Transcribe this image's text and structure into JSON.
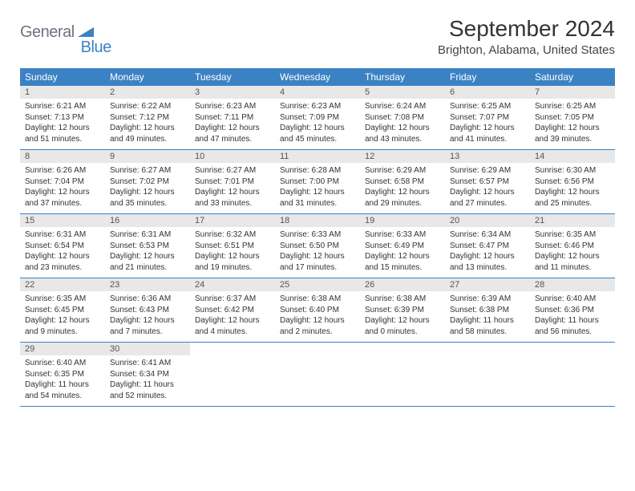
{
  "logo": {
    "part1": "General",
    "part2": "Blue"
  },
  "title": "September 2024",
  "location": "Brighton, Alabama, United States",
  "weekdays": [
    "Sunday",
    "Monday",
    "Tuesday",
    "Wednesday",
    "Thursday",
    "Friday",
    "Saturday"
  ],
  "colors": {
    "header_bg": "#3b82c4",
    "header_fg": "#ffffff",
    "daynum_bg": "#e8e8e8",
    "row_border": "#3b82c4",
    "logo_gray": "#6b7280",
    "logo_blue": "#3b82c4"
  },
  "days": [
    {
      "n": "1",
      "sunrise": "6:21 AM",
      "sunset": "7:13 PM",
      "daylight": "12 hours and 51 minutes."
    },
    {
      "n": "2",
      "sunrise": "6:22 AM",
      "sunset": "7:12 PM",
      "daylight": "12 hours and 49 minutes."
    },
    {
      "n": "3",
      "sunrise": "6:23 AM",
      "sunset": "7:11 PM",
      "daylight": "12 hours and 47 minutes."
    },
    {
      "n": "4",
      "sunrise": "6:23 AM",
      "sunset": "7:09 PM",
      "daylight": "12 hours and 45 minutes."
    },
    {
      "n": "5",
      "sunrise": "6:24 AM",
      "sunset": "7:08 PM",
      "daylight": "12 hours and 43 minutes."
    },
    {
      "n": "6",
      "sunrise": "6:25 AM",
      "sunset": "7:07 PM",
      "daylight": "12 hours and 41 minutes."
    },
    {
      "n": "7",
      "sunrise": "6:25 AM",
      "sunset": "7:05 PM",
      "daylight": "12 hours and 39 minutes."
    },
    {
      "n": "8",
      "sunrise": "6:26 AM",
      "sunset": "7:04 PM",
      "daylight": "12 hours and 37 minutes."
    },
    {
      "n": "9",
      "sunrise": "6:27 AM",
      "sunset": "7:02 PM",
      "daylight": "12 hours and 35 minutes."
    },
    {
      "n": "10",
      "sunrise": "6:27 AM",
      "sunset": "7:01 PM",
      "daylight": "12 hours and 33 minutes."
    },
    {
      "n": "11",
      "sunrise": "6:28 AM",
      "sunset": "7:00 PM",
      "daylight": "12 hours and 31 minutes."
    },
    {
      "n": "12",
      "sunrise": "6:29 AM",
      "sunset": "6:58 PM",
      "daylight": "12 hours and 29 minutes."
    },
    {
      "n": "13",
      "sunrise": "6:29 AM",
      "sunset": "6:57 PM",
      "daylight": "12 hours and 27 minutes."
    },
    {
      "n": "14",
      "sunrise": "6:30 AM",
      "sunset": "6:56 PM",
      "daylight": "12 hours and 25 minutes."
    },
    {
      "n": "15",
      "sunrise": "6:31 AM",
      "sunset": "6:54 PM",
      "daylight": "12 hours and 23 minutes."
    },
    {
      "n": "16",
      "sunrise": "6:31 AM",
      "sunset": "6:53 PM",
      "daylight": "12 hours and 21 minutes."
    },
    {
      "n": "17",
      "sunrise": "6:32 AM",
      "sunset": "6:51 PM",
      "daylight": "12 hours and 19 minutes."
    },
    {
      "n": "18",
      "sunrise": "6:33 AM",
      "sunset": "6:50 PM",
      "daylight": "12 hours and 17 minutes."
    },
    {
      "n": "19",
      "sunrise": "6:33 AM",
      "sunset": "6:49 PM",
      "daylight": "12 hours and 15 minutes."
    },
    {
      "n": "20",
      "sunrise": "6:34 AM",
      "sunset": "6:47 PM",
      "daylight": "12 hours and 13 minutes."
    },
    {
      "n": "21",
      "sunrise": "6:35 AM",
      "sunset": "6:46 PM",
      "daylight": "12 hours and 11 minutes."
    },
    {
      "n": "22",
      "sunrise": "6:35 AM",
      "sunset": "6:45 PM",
      "daylight": "12 hours and 9 minutes."
    },
    {
      "n": "23",
      "sunrise": "6:36 AM",
      "sunset": "6:43 PM",
      "daylight": "12 hours and 7 minutes."
    },
    {
      "n": "24",
      "sunrise": "6:37 AM",
      "sunset": "6:42 PM",
      "daylight": "12 hours and 4 minutes."
    },
    {
      "n": "25",
      "sunrise": "6:38 AM",
      "sunset": "6:40 PM",
      "daylight": "12 hours and 2 minutes."
    },
    {
      "n": "26",
      "sunrise": "6:38 AM",
      "sunset": "6:39 PM",
      "daylight": "12 hours and 0 minutes."
    },
    {
      "n": "27",
      "sunrise": "6:39 AM",
      "sunset": "6:38 PM",
      "daylight": "11 hours and 58 minutes."
    },
    {
      "n": "28",
      "sunrise": "6:40 AM",
      "sunset": "6:36 PM",
      "daylight": "11 hours and 56 minutes."
    },
    {
      "n": "29",
      "sunrise": "6:40 AM",
      "sunset": "6:35 PM",
      "daylight": "11 hours and 54 minutes."
    },
    {
      "n": "30",
      "sunrise": "6:41 AM",
      "sunset": "6:34 PM",
      "daylight": "11 hours and 52 minutes."
    }
  ],
  "labels": {
    "sunrise": "Sunrise:",
    "sunset": "Sunset:",
    "daylight": "Daylight:"
  }
}
